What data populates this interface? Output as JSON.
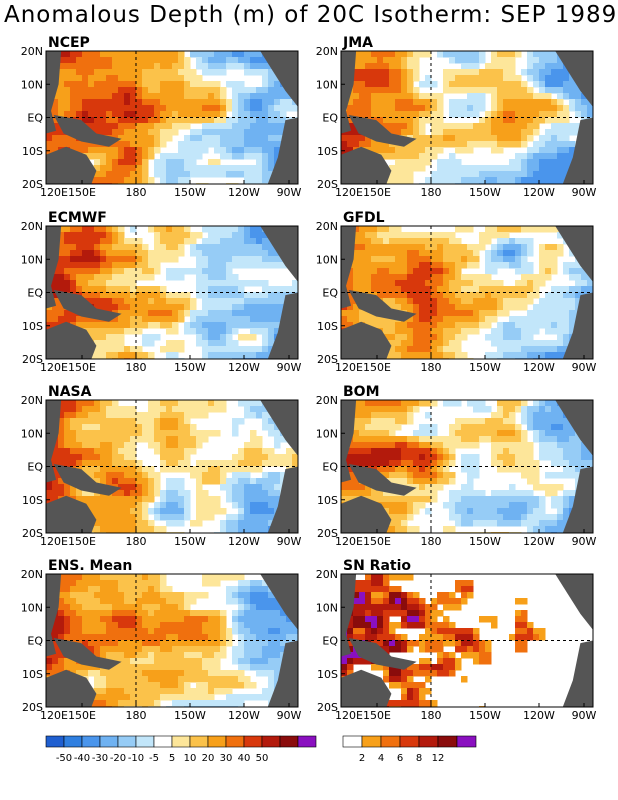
{
  "title": "Anomalous Depth (m) of 20C Isotherm: SEP 1989",
  "lat_labels": [
    "20N",
    "10N",
    "EQ",
    "10S",
    "20S"
  ],
  "lon_labels": [
    "120E",
    "150E",
    "180",
    "150W",
    "120W",
    "90W"
  ],
  "panels": [
    {
      "label": "NCEP",
      "scale": "anom"
    },
    {
      "label": "JMA",
      "scale": "anom"
    },
    {
      "label": "ECMWF",
      "scale": "anom"
    },
    {
      "label": "GFDL",
      "scale": "anom"
    },
    {
      "label": "NASA",
      "scale": "anom"
    },
    {
      "label": "BOM",
      "scale": "anom"
    },
    {
      "label": "ENS. Mean",
      "scale": "anom"
    },
    {
      "label": "SN Ratio",
      "scale": "sn"
    }
  ],
  "colorbars": {
    "anomaly": {
      "colors": [
        "#1f5fd0",
        "#2f7fe0",
        "#4a95ec",
        "#6fb2f2",
        "#96ccf6",
        "#c2e6fa",
        "#ffffff",
        "#fde69a",
        "#fbc24a",
        "#f7a01a",
        "#f0700e",
        "#d8380c",
        "#b31a0c",
        "#8a0c0c",
        "#8a10c0"
      ],
      "labels": [
        "-50",
        "-40",
        "-30",
        "-20",
        "-10",
        "-5",
        "5",
        "10",
        "20",
        "30",
        "40",
        "50"
      ]
    },
    "sn": {
      "colors": [
        "#ffffff",
        "#f7a01a",
        "#f0700e",
        "#d8380c",
        "#b31a0c",
        "#8a0c0c",
        "#8a10c0"
      ],
      "labels": [
        "2",
        "4",
        "6",
        "8",
        "12"
      ]
    }
  },
  "land_color": "#555555"
}
